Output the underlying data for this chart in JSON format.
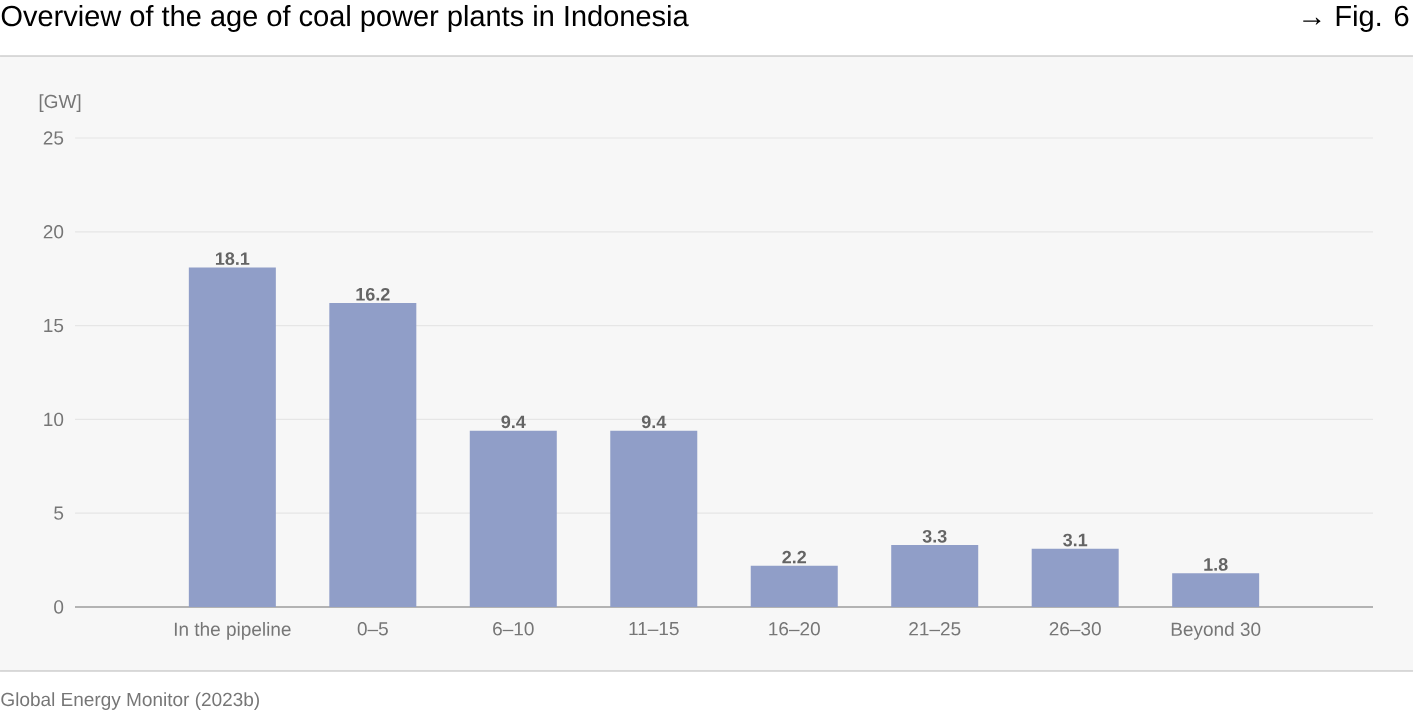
{
  "chart_data": {
    "type": "bar",
    "title": "Overview of the age of coal power plants in Indonesia",
    "ylabel": "[GW]",
    "annotations": [
      "→ Fig. 6",
      "Global Energy Monitor (2023b)"
    ],
    "categories": [
      "In the pipeline",
      "0–5",
      "6–10",
      "11–15",
      "16–20",
      "21–25",
      "26–30",
      "Beyond 30"
    ],
    "values": [
      18.1,
      16.2,
      9.4,
      9.4,
      2.2,
      3.3,
      3.1,
      1.8
    ],
    "value_labels": [
      "18.1",
      "16.2",
      "9.4",
      "9.4",
      "2.2",
      "3.3",
      "3.1",
      "1.8"
    ],
    "color": "#909ec8",
    "ylim": [
      0,
      25
    ],
    "yticks": [
      0,
      5,
      10,
      15,
      20,
      25
    ],
    "grid": "y"
  }
}
